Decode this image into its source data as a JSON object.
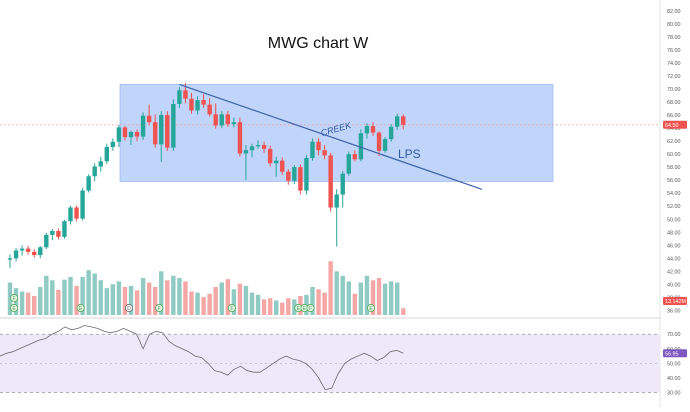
{
  "chart_data": {
    "type": "candlestick",
    "title": "MWG chart W",
    "price_axis": {
      "ticks": [
        "82.00",
        "80.00",
        "78.00",
        "76.00",
        "74.00",
        "72.00",
        "70.00",
        "68.00",
        "66.00",
        "64.00",
        "62.00",
        "60.00",
        "58.00",
        "56.00",
        "54.00",
        "52.00",
        "50.00",
        "48.00",
        "46.00",
        "44.00",
        "42.00",
        "40.00",
        "38.00",
        "36.00"
      ],
      "ylim": [
        35.3,
        83.2
      ],
      "last_price": "64.50",
      "volume_label": "13.142M"
    },
    "rsi_axis": {
      "ticks": [
        "70.00",
        "60.00",
        "50.00",
        "40.00",
        "30.00"
      ],
      "ylim": [
        27,
        77
      ],
      "bands": [
        30,
        70
      ],
      "last_value": "56.95",
      "values": [
        55,
        57,
        58,
        60,
        62,
        64,
        66,
        67,
        70,
        72,
        75,
        73,
        74,
        76,
        75,
        74,
        72,
        71,
        72,
        74,
        72,
        70,
        60,
        70,
        72,
        71,
        65,
        62,
        60,
        58,
        55,
        54,
        50,
        45,
        44,
        42,
        46,
        48,
        45,
        44,
        44,
        47,
        50,
        53,
        55,
        53,
        52,
        50,
        46,
        40,
        32,
        33,
        43,
        50,
        53,
        55,
        57,
        55,
        52,
        54,
        58,
        59,
        57
      ]
    },
    "candles": [
      [
        43.8,
        44.6,
        42.5,
        44.0
      ],
      [
        44.0,
        45.6,
        43.5,
        45.2
      ],
      [
        45.2,
        46.0,
        44.4,
        45.5
      ],
      [
        45.5,
        45.9,
        44.6,
        45.0
      ],
      [
        45.0,
        45.4,
        44.1,
        44.5
      ],
      [
        44.5,
        45.9,
        44.0,
        45.7
      ],
      [
        45.7,
        47.9,
        45.4,
        47.6
      ],
      [
        47.6,
        48.5,
        46.8,
        48.2
      ],
      [
        48.2,
        48.6,
        46.9,
        47.3
      ],
      [
        47.3,
        49.9,
        47.0,
        49.7
      ],
      [
        49.7,
        52.1,
        49.2,
        51.8
      ],
      [
        51.8,
        52.1,
        49.7,
        50.1
      ],
      [
        50.1,
        54.8,
        49.8,
        54.4
      ],
      [
        54.4,
        56.9,
        54.1,
        56.6
      ],
      [
        56.6,
        58.6,
        55.8,
        58.1
      ],
      [
        58.1,
        59.6,
        57.3,
        58.9
      ],
      [
        58.9,
        61.6,
        58.5,
        61.1
      ],
      [
        61.1,
        62.4,
        60.5,
        61.9
      ],
      [
        61.9,
        64.5,
        61.1,
        64.1
      ],
      [
        64.1,
        64.3,
        62.1,
        62.6
      ],
      [
        62.6,
        63.6,
        61.4,
        63.4
      ],
      [
        63.4,
        63.8,
        62.0,
        62.7
      ],
      [
        62.7,
        66.4,
        62.2,
        65.9
      ],
      [
        65.9,
        67.6,
        64.5,
        64.9
      ],
      [
        64.9,
        66.1,
        61.0,
        61.5
      ],
      [
        61.5,
        66.6,
        58.8,
        66.0
      ],
      [
        66.0,
        66.6,
        60.5,
        61.0
      ],
      [
        61.0,
        68.4,
        60.5,
        67.7
      ],
      [
        67.7,
        70.3,
        67.1,
        69.8
      ],
      [
        69.8,
        70.9,
        67.8,
        68.5
      ],
      [
        68.5,
        69.4,
        66.2,
        66.7
      ],
      [
        66.7,
        68.9,
        66.1,
        68.3
      ],
      [
        68.3,
        69.2,
        67.1,
        67.6
      ],
      [
        67.6,
        68.6,
        65.8,
        66.1
      ],
      [
        66.1,
        67.8,
        63.9,
        64.4
      ],
      [
        64.4,
        66.6,
        64.0,
        66.1
      ],
      [
        66.1,
        66.6,
        64.2,
        64.6
      ],
      [
        64.6,
        65.6,
        64.1,
        64.9
      ],
      [
        64.9,
        65.6,
        59.6,
        60.1
      ],
      [
        60.1,
        61.4,
        56.0,
        60.6
      ],
      [
        60.6,
        61.6,
        59.5,
        61.2
      ],
      [
        61.2,
        62.1,
        60.8,
        61.4
      ],
      [
        61.4,
        61.9,
        60.2,
        60.8
      ],
      [
        60.8,
        61.3,
        58.1,
        58.6
      ],
      [
        58.6,
        59.6,
        56.5,
        59.0
      ],
      [
        59.0,
        59.5,
        56.8,
        57.3
      ],
      [
        57.3,
        57.7,
        55.3,
        55.9
      ],
      [
        55.9,
        58.3,
        55.4,
        58.0
      ],
      [
        58.0,
        58.4,
        53.8,
        54.4
      ],
      [
        54.4,
        59.9,
        53.8,
        59.4
      ],
      [
        59.4,
        62.4,
        59.0,
        61.9
      ],
      [
        61.9,
        62.4,
        59.8,
        60.6
      ],
      [
        60.6,
        61.4,
        59.2,
        59.8
      ],
      [
        59.8,
        60.2,
        51.2,
        51.8
      ],
      [
        51.8,
        54.6,
        45.8,
        53.8
      ],
      [
        53.8,
        57.4,
        51.8,
        57.0
      ],
      [
        57.0,
        60.4,
        56.7,
        60.0
      ],
      [
        60.0,
        60.6,
        58.9,
        59.2
      ],
      [
        59.2,
        63.8,
        58.9,
        63.2
      ],
      [
        63.2,
        64.7,
        62.4,
        64.3
      ],
      [
        64.3,
        64.9,
        62.8,
        63.3
      ],
      [
        63.3,
        63.5,
        59.7,
        60.5
      ],
      [
        60.5,
        62.6,
        60.2,
        62.3
      ],
      [
        62.3,
        64.6,
        61.9,
        64.2
      ],
      [
        64.2,
        66.2,
        63.7,
        65.8
      ],
      [
        65.8,
        66.1,
        63.8,
        64.5
      ]
    ],
    "volume_bars": [
      0.58,
      0.48,
      0.42,
      0.4,
      0.34,
      0.5,
      0.7,
      0.62,
      0.45,
      0.63,
      0.68,
      0.52,
      0.68,
      0.8,
      0.74,
      0.62,
      0.48,
      0.55,
      0.6,
      0.5,
      0.52,
      0.44,
      0.66,
      0.58,
      0.5,
      0.78,
      0.62,
      0.7,
      0.66,
      0.6,
      0.42,
      0.4,
      0.32,
      0.38,
      0.5,
      0.58,
      0.64,
      0.46,
      0.56,
      0.52,
      0.4,
      0.36,
      0.28,
      0.3,
      0.26,
      0.22,
      0.3,
      0.28,
      0.34,
      0.36,
      0.5,
      0.46,
      0.4,
      0.96,
      0.78,
      0.7,
      0.6,
      0.38,
      0.58,
      0.7,
      0.62,
      0.66,
      0.56,
      0.6,
      0.58,
      0.12
    ],
    "range_box": {
      "price_top": 70.7,
      "price_bottom": 55.8
    },
    "trendline": {
      "from": {
        "bar": 28,
        "price": 70.7
      },
      "to": {
        "bar": 78,
        "price": 54.6
      }
    },
    "annotations": [
      {
        "text": "CREEK",
        "bar": 54,
        "price": 63.4,
        "angle": -16
      },
      {
        "text": "LPS",
        "bar": 66,
        "price": 59.4,
        "angle": 0
      }
    ],
    "event_markers": [
      {
        "bar": 1,
        "level": 0,
        "symbol": "F"
      },
      {
        "bar": 1,
        "level": 1,
        "symbol": "E"
      },
      {
        "bar": 12,
        "level": 1,
        "symbol": "E"
      },
      {
        "bar": 20,
        "level": 1,
        "symbol": "D"
      },
      {
        "bar": 25,
        "level": 1,
        "symbol": "F"
      },
      {
        "bar": 37,
        "level": 1,
        "symbol": "F"
      },
      {
        "bar": 48,
        "level": 1,
        "symbol": "E"
      },
      {
        "bar": 49,
        "level": 1,
        "symbol": "E"
      },
      {
        "bar": 50,
        "level": 1,
        "symbol": "F"
      },
      {
        "bar": 60,
        "level": 1,
        "symbol": "E"
      }
    ],
    "colors": {
      "up": "#26a69a",
      "down": "#ef5350",
      "vol_up": "#8fcbc3",
      "vol_down": "#f4a7a5",
      "range_fill": "#a9c3f7",
      "trendline": "#3d62a8",
      "annotation": "#2e5aac",
      "rsi_line": "#6b6b6b",
      "rsi_band": "#ede9fb",
      "last_price_tag": "#ef5350",
      "volume_tag": "#ef5350",
      "rsi_tag": "#7e57c2"
    }
  }
}
